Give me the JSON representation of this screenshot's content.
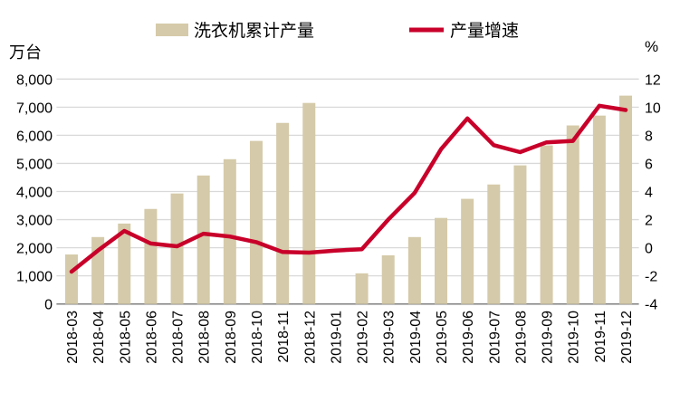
{
  "chart_data": {
    "type": "bar+line",
    "categories": [
      "2018-03",
      "2018-04",
      "2018-05",
      "2018-06",
      "2018-07",
      "2018-08",
      "2018-09",
      "2018-10",
      "2018-11",
      "2018-12",
      "2019-01",
      "2019-02",
      "2019-03",
      "2019-04",
      "2019-05",
      "2019-06",
      "2019-07",
      "2019-08",
      "2019-09",
      "2019-10",
      "2019-11",
      "2019-12"
    ],
    "series": [
      {
        "name": "洗衣机累计产量",
        "type": "bar",
        "axis": "left",
        "color": "#D5CAA9",
        "values": [
          1760,
          2380,
          2860,
          3380,
          3930,
          4570,
          5150,
          5800,
          6440,
          7150,
          null,
          1090,
          1730,
          2380,
          3060,
          3740,
          4250,
          4930,
          5640,
          6350,
          6700,
          7410
        ]
      },
      {
        "name": "产量增速",
        "type": "line",
        "axis": "right",
        "color": "#C8002A",
        "values": [
          -1.7,
          -0.2,
          1.2,
          0.3,
          0.1,
          1.0,
          0.8,
          0.4,
          -0.3,
          -0.35,
          -0.2,
          -0.1,
          2.0,
          3.9,
          7.0,
          9.2,
          7.3,
          6.8,
          7.5,
          7.6,
          10.1,
          9.8
        ]
      }
    ],
    "left_axis": {
      "unit": "万台",
      "ylim": [
        0,
        8000
      ],
      "ticks": [
        "0",
        "1,000",
        "2,000",
        "3,000",
        "4,000",
        "5,000",
        "6,000",
        "7,000",
        "8,000"
      ]
    },
    "right_axis": {
      "unit": "%",
      "ylim": [
        -4,
        12
      ],
      "ticks": [
        "-4",
        "-2",
        "0",
        "2",
        "4",
        "6",
        "8",
        "10",
        "12"
      ]
    },
    "grid": true,
    "legend_position": "top"
  }
}
